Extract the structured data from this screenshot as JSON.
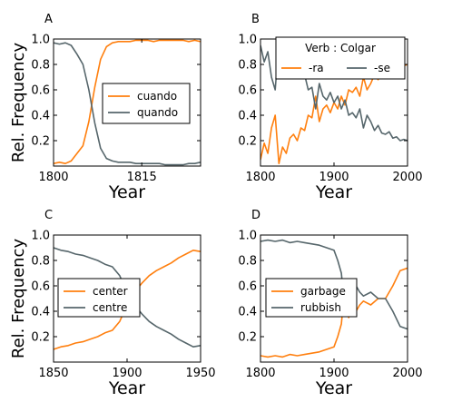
{
  "colors": {
    "orange": "#ff7f0e",
    "gray": "#56666b"
  },
  "chart_data": [
    {
      "type": "line",
      "panel": "A",
      "xlabel": "Year",
      "ylabel": "Rel. Frequency",
      "xlim": [
        1800,
        1825
      ],
      "ylim": [
        0,
        1.0
      ],
      "xticks": [
        "1800",
        "1815"
      ],
      "xtick_values": [
        1800,
        1815
      ],
      "yticks": [
        "0.2",
        "0.4",
        "0.6",
        "0.8",
        "1.0"
      ],
      "ytick_values": [
        0.2,
        0.4,
        0.6,
        0.8,
        1.0
      ],
      "legend_title": "",
      "legend_position": "center-right",
      "grid": false,
      "series": [
        {
          "name": "cuando",
          "color": "#ff7f0e",
          "x": [
            1800,
            1801,
            1802,
            1803,
            1804,
            1805,
            1806,
            1807,
            1808,
            1809,
            1810,
            1811,
            1812,
            1813,
            1814,
            1815,
            1816,
            1817,
            1818,
            1819,
            1820,
            1821,
            1822,
            1823,
            1824,
            1825
          ],
          "y": [
            0.02,
            0.03,
            0.02,
            0.04,
            0.1,
            0.16,
            0.35,
            0.62,
            0.84,
            0.94,
            0.97,
            0.98,
            0.98,
            0.98,
            0.99,
            0.99,
            0.99,
            0.98,
            0.99,
            0.99,
            0.99,
            0.99,
            0.99,
            0.98,
            0.99,
            0.98
          ]
        },
        {
          "name": "quando",
          "color": "#56666b",
          "x": [
            1800,
            1801,
            1802,
            1803,
            1804,
            1805,
            1806,
            1807,
            1808,
            1809,
            1810,
            1811,
            1812,
            1813,
            1814,
            1815,
            1816,
            1817,
            1818,
            1819,
            1820,
            1821,
            1822,
            1823,
            1824,
            1825
          ],
          "y": [
            0.97,
            0.96,
            0.97,
            0.95,
            0.88,
            0.8,
            0.6,
            0.34,
            0.14,
            0.06,
            0.04,
            0.03,
            0.03,
            0.03,
            0.02,
            0.02,
            0.02,
            0.02,
            0.02,
            0.01,
            0.01,
            0.01,
            0.01,
            0.02,
            0.02,
            0.03
          ]
        }
      ]
    },
    {
      "type": "line",
      "panel": "B",
      "xlabel": "Year",
      "ylabel": "",
      "xlim": [
        1800,
        2000
      ],
      "ylim": [
        0,
        1.0
      ],
      "xticks": [
        "1800",
        "1900",
        "2000"
      ],
      "xtick_values": [
        1800,
        1900,
        2000
      ],
      "yticks": [
        "0.2",
        "0.4",
        "0.6",
        "0.8",
        "1.0"
      ],
      "ytick_values": [
        0.2,
        0.4,
        0.6,
        0.8,
        1.0
      ],
      "legend_title": "Verb : Colgar",
      "legend_position": "top-right",
      "grid": false,
      "series": [
        {
          "name": "-ra",
          "color": "#ff7f0e",
          "x": [
            1800,
            1805,
            1810,
            1815,
            1820,
            1825,
            1830,
            1835,
            1840,
            1845,
            1850,
            1855,
            1860,
            1865,
            1870,
            1875,
            1880,
            1885,
            1890,
            1895,
            1900,
            1905,
            1910,
            1915,
            1920,
            1925,
            1930,
            1935,
            1940,
            1945,
            1950,
            1955,
            1960,
            1965,
            1970,
            1975,
            1980,
            1985,
            1990,
            1995,
            2000
          ],
          "y": [
            0.05,
            0.18,
            0.1,
            0.3,
            0.4,
            0.02,
            0.15,
            0.1,
            0.22,
            0.25,
            0.2,
            0.3,
            0.28,
            0.4,
            0.38,
            0.55,
            0.35,
            0.45,
            0.48,
            0.42,
            0.5,
            0.45,
            0.55,
            0.48,
            0.6,
            0.58,
            0.62,
            0.55,
            0.7,
            0.6,
            0.65,
            0.72,
            0.68,
            0.74,
            0.75,
            0.73,
            0.78,
            0.77,
            0.8,
            0.79,
            0.8
          ]
        },
        {
          "name": "-se",
          "color": "#56666b",
          "x": [
            1800,
            1805,
            1810,
            1815,
            1820,
            1825,
            1830,
            1835,
            1840,
            1845,
            1850,
            1855,
            1860,
            1865,
            1870,
            1875,
            1880,
            1885,
            1890,
            1895,
            1900,
            1905,
            1910,
            1915,
            1920,
            1925,
            1930,
            1935,
            1940,
            1945,
            1950,
            1955,
            1960,
            1965,
            1970,
            1975,
            1980,
            1985,
            1990,
            1995,
            2000
          ],
          "y": [
            0.95,
            0.82,
            0.9,
            0.7,
            0.6,
            0.98,
            0.85,
            0.9,
            0.78,
            0.75,
            0.8,
            0.7,
            0.72,
            0.6,
            0.62,
            0.45,
            0.65,
            0.55,
            0.52,
            0.58,
            0.5,
            0.55,
            0.45,
            0.52,
            0.4,
            0.42,
            0.38,
            0.45,
            0.3,
            0.4,
            0.35,
            0.28,
            0.32,
            0.26,
            0.25,
            0.27,
            0.22,
            0.23,
            0.2,
            0.21,
            0.2
          ]
        }
      ]
    },
    {
      "type": "line",
      "panel": "C",
      "xlabel": "Year",
      "ylabel": "Rel. Frequency",
      "xlim": [
        1850,
        1950
      ],
      "ylim": [
        0,
        1.0
      ],
      "xticks": [
        "1850",
        "1900",
        "1950"
      ],
      "xtick_values": [
        1850,
        1900,
        1950
      ],
      "yticks": [
        "0.2",
        "0.4",
        "0.6",
        "0.8",
        "1.0"
      ],
      "ytick_values": [
        0.2,
        0.4,
        0.6,
        0.8,
        1.0
      ],
      "legend_title": "",
      "legend_position": "center-left",
      "grid": false,
      "series": [
        {
          "name": "center",
          "color": "#ff7f0e",
          "x": [
            1850,
            1855,
            1860,
            1865,
            1870,
            1875,
            1880,
            1885,
            1890,
            1895,
            1900,
            1905,
            1910,
            1915,
            1920,
            1925,
            1930,
            1935,
            1940,
            1945,
            1950
          ],
          "y": [
            0.1,
            0.12,
            0.13,
            0.15,
            0.16,
            0.18,
            0.2,
            0.23,
            0.25,
            0.32,
            0.45,
            0.55,
            0.62,
            0.68,
            0.72,
            0.75,
            0.78,
            0.82,
            0.85,
            0.88,
            0.87
          ]
        },
        {
          "name": "centre",
          "color": "#56666b",
          "x": [
            1850,
            1855,
            1860,
            1865,
            1870,
            1875,
            1880,
            1885,
            1890,
            1895,
            1900,
            1905,
            1910,
            1915,
            1920,
            1925,
            1930,
            1935,
            1940,
            1945,
            1950
          ],
          "y": [
            0.9,
            0.88,
            0.87,
            0.85,
            0.84,
            0.82,
            0.8,
            0.77,
            0.75,
            0.68,
            0.55,
            0.45,
            0.38,
            0.32,
            0.28,
            0.25,
            0.22,
            0.18,
            0.15,
            0.12,
            0.13
          ]
        }
      ]
    },
    {
      "type": "line",
      "panel": "D",
      "xlabel": "Year",
      "ylabel": "",
      "xlim": [
        1800,
        2000
      ],
      "ylim": [
        0,
        1.0
      ],
      "xticks": [
        "1800",
        "1900",
        "2000"
      ],
      "xtick_values": [
        1800,
        1900,
        2000
      ],
      "yticks": [
        "0.2",
        "0.4",
        "0.6",
        "0.8",
        "1.0"
      ],
      "ytick_values": [
        0.2,
        0.4,
        0.6,
        0.8,
        1.0
      ],
      "legend_title": "",
      "legend_position": "center-left",
      "grid": false,
      "series": [
        {
          "name": "garbage",
          "color": "#ff7f0e",
          "x": [
            1800,
            1810,
            1820,
            1830,
            1840,
            1850,
            1860,
            1870,
            1880,
            1890,
            1900,
            1905,
            1910,
            1915,
            1920,
            1925,
            1930,
            1935,
            1940,
            1950,
            1960,
            1970,
            1980,
            1990,
            2000
          ],
          "y": [
            0.05,
            0.04,
            0.05,
            0.04,
            0.06,
            0.05,
            0.06,
            0.07,
            0.08,
            0.1,
            0.12,
            0.2,
            0.3,
            0.6,
            0.35,
            0.5,
            0.4,
            0.45,
            0.48,
            0.45,
            0.5,
            0.5,
            0.6,
            0.72,
            0.74
          ]
        },
        {
          "name": "rubbish",
          "color": "#56666b",
          "x": [
            1800,
            1810,
            1820,
            1830,
            1840,
            1850,
            1860,
            1870,
            1880,
            1890,
            1900,
            1905,
            1910,
            1915,
            1920,
            1925,
            1930,
            1935,
            1940,
            1950,
            1960,
            1970,
            1980,
            1990,
            2000
          ],
          "y": [
            0.95,
            0.96,
            0.95,
            0.96,
            0.94,
            0.95,
            0.94,
            0.93,
            0.92,
            0.9,
            0.88,
            0.8,
            0.7,
            0.4,
            0.65,
            0.5,
            0.6,
            0.55,
            0.52,
            0.55,
            0.5,
            0.5,
            0.4,
            0.28,
            0.26
          ]
        }
      ]
    }
  ]
}
